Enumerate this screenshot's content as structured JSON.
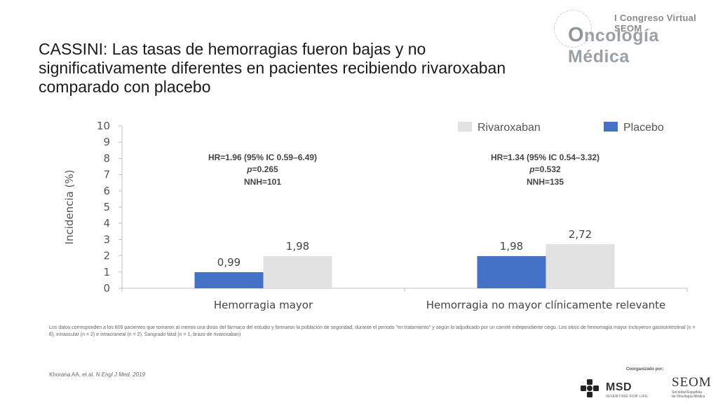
{
  "slide": {
    "title": "CASSINI: Las tasas de hemorragias fueron bajas y no significativamente diferentes en pacientes recibiendo rivaroxaban comparado con placebo",
    "footnote": "Los datos corresponden a los 809 pacientes que tomaron al menos una dosis del fármaco del estudio y formaron la población de seguridad, durante el periodo \"en tratamiento\" y según lo adjudicado por un comité independiente ciego. Los sitios de hemorragia mayor incluyeron gastrointestinal (n = 8), intraocular (n = 2) e intracraneal (n = 2). Sangrado fatal (n = 1, brazo de rivaroxaban)",
    "reference_authors": "Khorana AA, et al.",
    "reference_journal": "N Engl J Med. 2019"
  },
  "branding": {
    "congress_line1": "I Congreso Virtual SEOM",
    "congress_o": "O",
    "congress_line2": "ncología Médica",
    "organized_by": "Coorganizado por:",
    "msd_name": "MSD",
    "msd_tagline": "INVENTING FOR LIFE",
    "seom_name": "SEOM",
    "seom_sub1": "Sociedad Española",
    "seom_sub2": "de Oncología Médica"
  },
  "chart_data": {
    "type": "bar",
    "categories": [
      "Hemorragia mayor",
      "Hemorragia no mayor clínicamente relevante"
    ],
    "series": [
      {
        "name": "Placebo",
        "values": [
          0.99,
          1.98
        ],
        "labels": [
          "0,99",
          "1,98"
        ],
        "color": "#4472c4"
      },
      {
        "name": "Rivaroxaban",
        "values": [
          1.98,
          2.72
        ],
        "labels": [
          "1,98",
          "2,72"
        ],
        "color": "#e2e2e2"
      }
    ],
    "legend_order": [
      "Rivaroxaban",
      "Placebo"
    ],
    "legend_position": "top-right",
    "ylabel": "Incidencia (%)",
    "ylim": [
      0,
      10
    ],
    "yticks": [
      0,
      1,
      2,
      3,
      4,
      5,
      6,
      7,
      8,
      9,
      10
    ],
    "grid": false,
    "annotations": [
      {
        "hr": "HR=1.96 (95% IC 0.59–6.49)",
        "p_prefix": "p",
        "p_value": "=0.265",
        "nnh": "NNH=101"
      },
      {
        "hr": "HR=1.34 (95% IC 0.54–3.32)",
        "p_prefix": "p",
        "p_value": "=0.532",
        "nnh": "NNH=135"
      }
    ]
  }
}
